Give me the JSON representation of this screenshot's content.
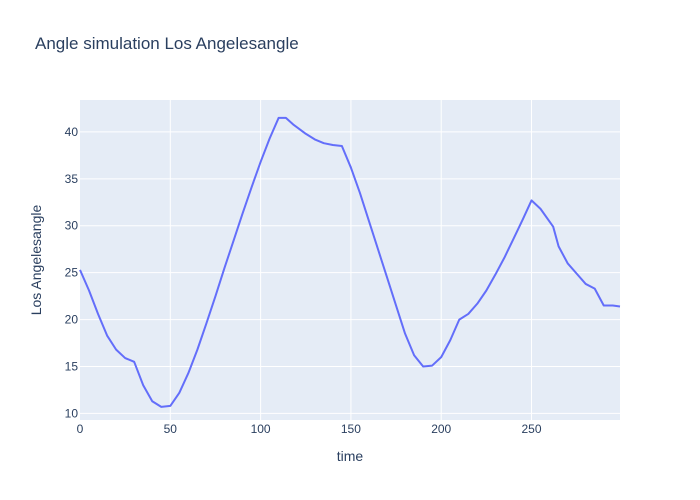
{
  "chart_data": {
    "type": "line",
    "title": "Angle simulation Los Angelesangle",
    "xlabel": "time",
    "ylabel": "Los Angelesangle",
    "xlim": [
      0,
      299
    ],
    "ylim": [
      9.3,
      43.4
    ],
    "xticks": [
      0,
      50,
      100,
      150,
      200,
      250
    ],
    "yticks": [
      10,
      15,
      20,
      25,
      30,
      35,
      40
    ],
    "grid": true,
    "colors": {
      "line": "#636efa",
      "plot_bg": "#e5ecf6",
      "grid": "#ffffff",
      "text": "#2a3f5f"
    },
    "series": [
      {
        "x": [
          0,
          5,
          10,
          15,
          20,
          25,
          30,
          35,
          40,
          45,
          50,
          55,
          60,
          65,
          70,
          75,
          80,
          85,
          90,
          95,
          100,
          105,
          110,
          114,
          118,
          125,
          130,
          135,
          140,
          145,
          150,
          155,
          160,
          165,
          170,
          175,
          180,
          185,
          190,
          195,
          200,
          205,
          210,
          215,
          220,
          225,
          230,
          235,
          240,
          245,
          250,
          255,
          262,
          265,
          270,
          275,
          280,
          285,
          290,
          295,
          299
        ],
        "y": [
          25.3,
          23.1,
          20.6,
          18.3,
          16.8,
          15.9,
          15.5,
          13.0,
          11.3,
          10.7,
          10.8,
          12.2,
          14.3,
          16.8,
          19.6,
          22.5,
          25.5,
          28.4,
          31.3,
          34.1,
          36.8,
          39.3,
          41.5,
          41.5,
          40.8,
          39.8,
          39.2,
          38.8,
          38.6,
          38.5,
          36.2,
          33.5,
          30.5,
          27.5,
          24.5,
          21.5,
          18.5,
          16.2,
          15.0,
          15.1,
          16.0,
          17.8,
          20.0,
          20.6,
          21.7,
          23.1,
          24.8,
          26.6,
          28.6,
          30.6,
          32.7,
          31.8,
          29.9,
          27.8,
          26.0,
          24.9,
          23.8,
          23.3,
          21.5,
          21.5,
          21.4
        ]
      }
    ]
  }
}
